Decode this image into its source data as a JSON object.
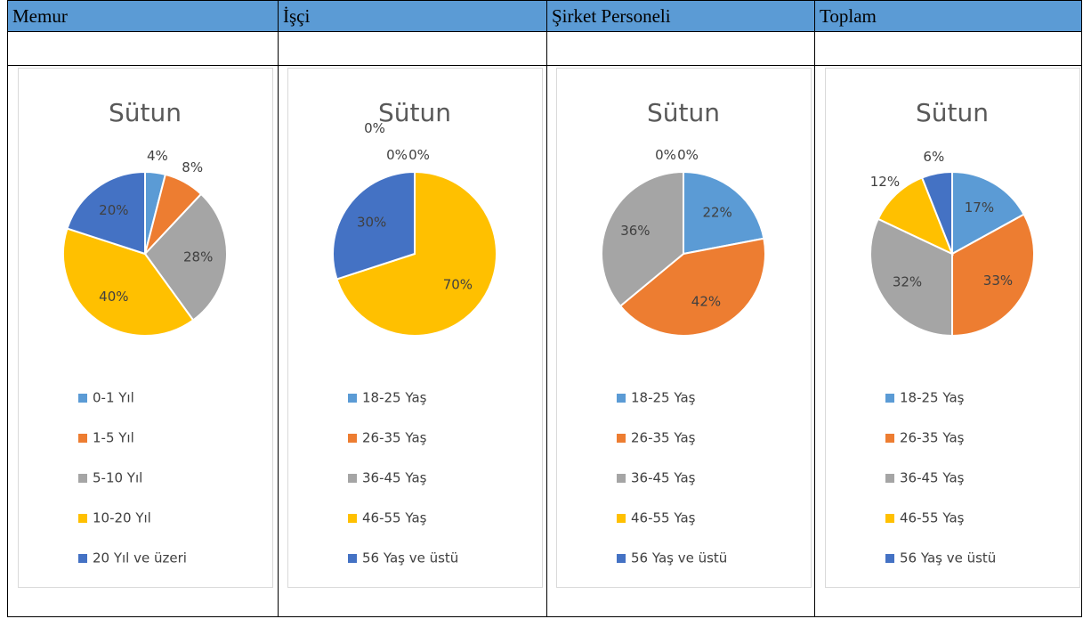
{
  "table": {
    "headers": [
      "Memur",
      "İşçi",
      "Şirket Personeli",
      "Toplam"
    ]
  },
  "chart_data": [
    {
      "type": "pie",
      "title": "Sütun",
      "categories": [
        "0-1 Yıl",
        "1-5 Yıl",
        "5-10 Yıl",
        "10-20 Yıl",
        "20 Yıl ve üzeri"
      ],
      "values": [
        4,
        8,
        28,
        40,
        20
      ],
      "value_labels": [
        "4%",
        "8%",
        "28%",
        "40%",
        "20%"
      ],
      "colors": [
        "#5b9bd5",
        "#ed7d31",
        "#a5a5a5",
        "#ffc000",
        "#4472c4"
      ],
      "legend": "bottom"
    },
    {
      "type": "pie",
      "title": "Sütun",
      "categories": [
        "18-25 Yaş",
        "26-35 Yaş",
        "36-45 Yaş",
        "46-55 Yaş",
        "56 Yaş ve üstü"
      ],
      "values": [
        0,
        0,
        0,
        70,
        30
      ],
      "value_labels": [
        "0%",
        "0%",
        "0%",
        "70%",
        "30%"
      ],
      "colors": [
        "#5b9bd5",
        "#ed7d31",
        "#a5a5a5",
        "#ffc000",
        "#4472c4"
      ],
      "legend": "bottom"
    },
    {
      "type": "pie",
      "title": "Sütun",
      "categories": [
        "18-25 Yaş",
        "26-35 Yaş",
        "36-45 Yaş",
        "46-55 Yaş",
        "56 Yaş ve üstü"
      ],
      "values": [
        22,
        42,
        36,
        0,
        0
      ],
      "value_labels": [
        "22%",
        "42%",
        "36%",
        "0%",
        "0%"
      ],
      "colors": [
        "#5b9bd5",
        "#ed7d31",
        "#a5a5a5",
        "#ffc000",
        "#4472c4"
      ],
      "legend": "bottom"
    },
    {
      "type": "pie",
      "title": "Sütun",
      "categories": [
        "18-25 Yaş",
        "26-35 Yaş",
        "36-45 Yaş",
        "46-55 Yaş",
        "56 Yaş ve üstü"
      ],
      "values": [
        17,
        33,
        32,
        12,
        6
      ],
      "value_labels": [
        "17%",
        "33%",
        "32%",
        "12%",
        "6%"
      ],
      "colors": [
        "#5b9bd5",
        "#ed7d31",
        "#a5a5a5",
        "#ffc000",
        "#4472c4"
      ],
      "legend": "bottom"
    }
  ]
}
